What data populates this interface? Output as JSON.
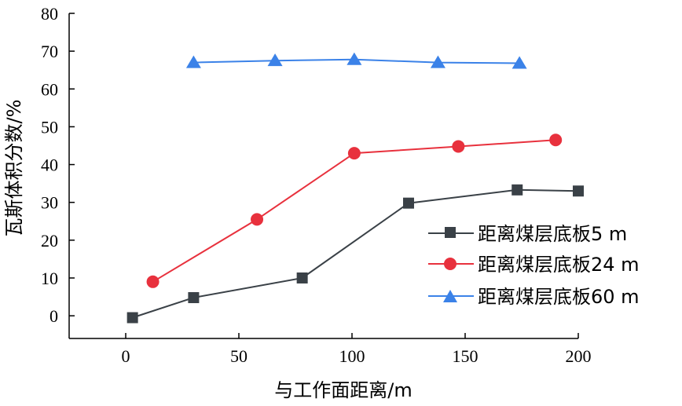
{
  "chart_data": {
    "type": "line",
    "xlabel": "与工作面距离/m",
    "ylabel": "瓦斯体积分数/%",
    "xlim": [
      -25,
      200
    ],
    "ylim": [
      -6,
      80
    ],
    "xticks": [
      0,
      50,
      100,
      150,
      200
    ],
    "yticks": [
      0,
      10,
      20,
      30,
      40,
      50,
      60,
      70,
      80
    ],
    "grid": false,
    "legend_position": "right",
    "series": [
      {
        "name": "距离煤层底板5 m",
        "color": "#3a4147",
        "marker": "square",
        "x": [
          3,
          30,
          78,
          125,
          173,
          200
        ],
        "y": [
          -0.5,
          4.8,
          10,
          29.8,
          33.3,
          33
        ]
      },
      {
        "name": "距离煤层底板24 m",
        "color": "#e8313d",
        "marker": "circle",
        "x": [
          12,
          58,
          101,
          147,
          190
        ],
        "y": [
          9,
          25.5,
          43,
          44.8,
          46.5
        ]
      },
      {
        "name": "距离煤层底板60 m",
        "color": "#3b82e8",
        "marker": "triangle",
        "x": [
          30,
          66,
          101,
          138,
          174
        ],
        "y": [
          67,
          67.5,
          67.8,
          67,
          66.8
        ]
      }
    ]
  }
}
